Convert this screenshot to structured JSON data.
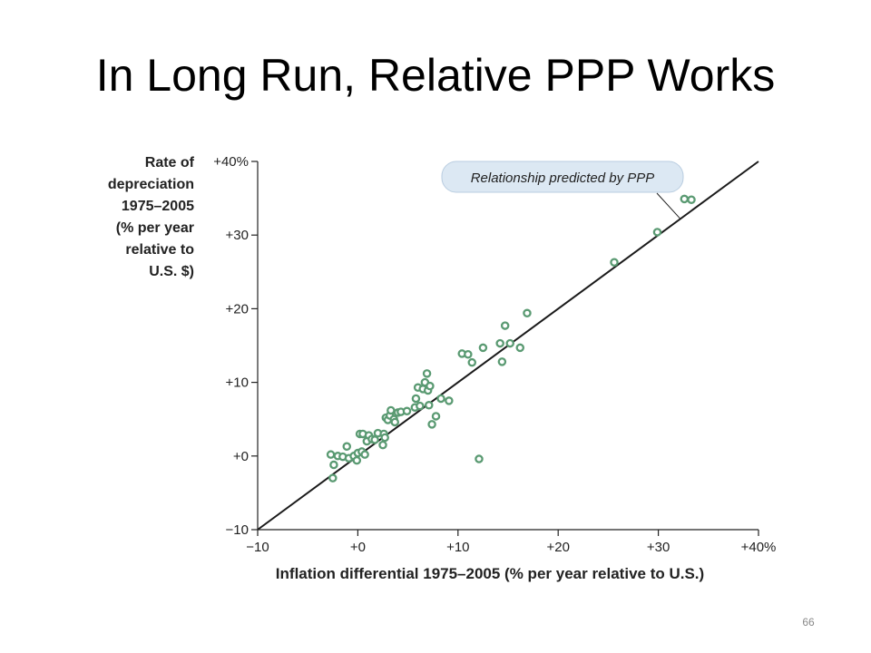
{
  "slide": {
    "title": "In Long Run, Relative PPP Works",
    "page_number": "66"
  },
  "colors": {
    "marker": "#5a9a72",
    "line": "#1a1a1a",
    "callout_fill": "#dce8f3"
  },
  "chart_data": {
    "type": "scatter",
    "ylabel_lines": [
      "Rate of",
      "depreciation",
      "1975–2005",
      "(% per year",
      "relative to",
      "U.S. $)"
    ],
    "xlabel": "Inflation differential 1975–2005 (% per year relative to U.S.)",
    "xlim": [
      -10,
      40
    ],
    "ylim": [
      -10,
      40
    ],
    "x_ticks": [
      {
        "value": -10,
        "label": "−10"
      },
      {
        "value": 0,
        "label": "+0"
      },
      {
        "value": 10,
        "label": "+10"
      },
      {
        "value": 20,
        "label": "+20"
      },
      {
        "value": 30,
        "label": "+30"
      },
      {
        "value": 40,
        "label": "+40%"
      }
    ],
    "y_ticks": [
      {
        "value": -10,
        "label": "−10"
      },
      {
        "value": 0,
        "label": "+0"
      },
      {
        "value": 10,
        "label": "+10"
      },
      {
        "value": 20,
        "label": "+20"
      },
      {
        "value": 30,
        "label": "+30"
      },
      {
        "value": 40,
        "label": "+40%"
      }
    ],
    "reference_line": {
      "from": [
        -10,
        -10
      ],
      "to": [
        40,
        40
      ]
    },
    "annotation": {
      "text": "Relationship predicted by PPP",
      "points_to": [
        32.2,
        32.2
      ]
    },
    "points": [
      [
        -2.7,
        0.2
      ],
      [
        -2.4,
        -1.2
      ],
      [
        -2.5,
        -3.0
      ],
      [
        -2.0,
        0.0
      ],
      [
        -1.5,
        -0.1
      ],
      [
        -1.1,
        1.3
      ],
      [
        -0.9,
        -0.3
      ],
      [
        -0.4,
        0.0
      ],
      [
        -0.1,
        -0.6
      ],
      [
        0.0,
        0.4
      ],
      [
        0.2,
        3.0
      ],
      [
        0.4,
        0.6
      ],
      [
        0.5,
        3.0
      ],
      [
        0.7,
        0.2
      ],
      [
        0.9,
        2.0
      ],
      [
        1.1,
        2.8
      ],
      [
        1.4,
        2.3
      ],
      [
        1.7,
        2.2
      ],
      [
        2.0,
        3.1
      ],
      [
        2.5,
        1.5
      ],
      [
        2.6,
        3.0
      ],
      [
        2.7,
        2.5
      ],
      [
        2.8,
        5.2
      ],
      [
        3.0,
        4.9
      ],
      [
        3.2,
        5.5
      ],
      [
        3.3,
        6.2
      ],
      [
        3.6,
        5.0
      ],
      [
        3.7,
        4.6
      ],
      [
        4.0,
        5.9
      ],
      [
        4.3,
        6.0
      ],
      [
        4.9,
        6.1
      ],
      [
        5.7,
        6.6
      ],
      [
        5.8,
        7.8
      ],
      [
        6.0,
        9.3
      ],
      [
        6.2,
        6.8
      ],
      [
        6.5,
        9.1
      ],
      [
        6.7,
        10.0
      ],
      [
        6.9,
        11.2
      ],
      [
        7.0,
        8.9
      ],
      [
        7.1,
        6.9
      ],
      [
        7.2,
        9.5
      ],
      [
        7.4,
        4.3
      ],
      [
        7.8,
        5.4
      ],
      [
        8.3,
        7.8
      ],
      [
        9.1,
        7.5
      ],
      [
        10.4,
        13.9
      ],
      [
        11.0,
        13.8
      ],
      [
        11.4,
        12.7
      ],
      [
        12.1,
        -0.4
      ],
      [
        12.5,
        14.7
      ],
      [
        14.2,
        15.3
      ],
      [
        14.4,
        12.8
      ],
      [
        14.7,
        17.7
      ],
      [
        15.2,
        15.3
      ],
      [
        16.2,
        14.7
      ],
      [
        16.9,
        19.4
      ],
      [
        25.6,
        26.3
      ],
      [
        29.9,
        30.4
      ],
      [
        32.6,
        34.9
      ],
      [
        33.3,
        34.8
      ]
    ]
  }
}
